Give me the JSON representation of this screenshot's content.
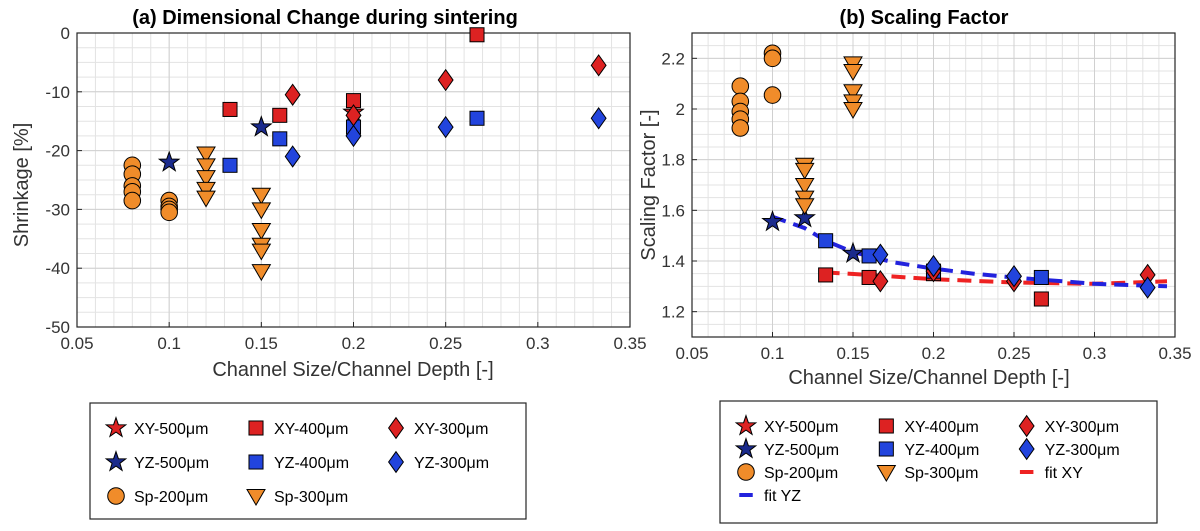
{
  "chart_data": [
    {
      "type": "scatter",
      "title": "(a) Dimensional Change during sintering",
      "xlabel": "Channel Size/Channel Depth [-]",
      "ylabel": "Shrinkage [%]",
      "xlim": [
        0.05,
        0.35
      ],
      "ylim": [
        -50,
        0
      ],
      "xticks": [
        0.05,
        0.1,
        0.15,
        0.2,
        0.25,
        0.3,
        0.35
      ],
      "yticks": [
        -50,
        -40,
        -30,
        -20,
        -10,
        0
      ],
      "xticklabels": [
        "0.05",
        "0.1",
        "0.15",
        "0.2",
        "0.25",
        "0.3",
        "0.35"
      ],
      "yticklabels": [
        "-50",
        "-40",
        "-30",
        "-20",
        "-10",
        "0"
      ],
      "grid": "minor",
      "series": [
        {
          "name": "XY-500µm",
          "marker": "star",
          "color": "#dd2222",
          "points": [
            [
              0.2,
              -13.5
            ]
          ]
        },
        {
          "name": "YZ-500µm",
          "marker": "star",
          "color": "#1a2a8c",
          "points": [
            [
              0.1,
              -22
            ],
            [
              0.15,
              -16
            ]
          ]
        },
        {
          "name": "XY-400µm",
          "marker": "square",
          "color": "#dd2222",
          "points": [
            [
              0.133,
              -13
            ],
            [
              0.16,
              -14
            ],
            [
              0.2,
              -11.5
            ],
            [
              0.267,
              -0.3
            ]
          ]
        },
        {
          "name": "YZ-400µm",
          "marker": "square",
          "color": "#2244dd",
          "points": [
            [
              0.133,
              -22.5
            ],
            [
              0.16,
              -18
            ],
            [
              0.2,
              -16
            ],
            [
              0.267,
              -14.5
            ]
          ]
        },
        {
          "name": "XY-300µm",
          "marker": "diamond",
          "color": "#dd2222",
          "points": [
            [
              0.167,
              -10.5
            ],
            [
              0.2,
              -14
            ],
            [
              0.25,
              -8
            ],
            [
              0.333,
              -5.5
            ]
          ]
        },
        {
          "name": "YZ-300µm",
          "marker": "diamond",
          "color": "#2244dd",
          "points": [
            [
              0.167,
              -21
            ],
            [
              0.2,
              -17.5
            ],
            [
              0.25,
              -16
            ],
            [
              0.333,
              -14.5
            ]
          ]
        },
        {
          "name": "Sp-200µm",
          "marker": "circle",
          "color": "#f08c2a",
          "points": [
            [
              0.08,
              -22.5
            ],
            [
              0.08,
              -24
            ],
            [
              0.08,
              -26
            ],
            [
              0.08,
              -27
            ],
            [
              0.08,
              -28.5
            ],
            [
              0.1,
              -28.5
            ],
            [
              0.1,
              -29.5
            ],
            [
              0.1,
              -30
            ],
            [
              0.1,
              -30.5
            ]
          ]
        },
        {
          "name": "Sp-300µm",
          "marker": "triangle-down",
          "color": "#f08c2a",
          "points": [
            [
              0.12,
              -20.5
            ],
            [
              0.12,
              -22.5
            ],
            [
              0.12,
              -24.5
            ],
            [
              0.12,
              -26.5
            ],
            [
              0.12,
              -28
            ],
            [
              0.15,
              -27.5
            ],
            [
              0.15,
              -30
            ],
            [
              0.15,
              -33.5
            ],
            [
              0.15,
              -36
            ],
            [
              0.15,
              -37
            ],
            [
              0.15,
              -40.5
            ]
          ]
        }
      ]
    },
    {
      "type": "scatter",
      "title": "(b) Scaling Factor",
      "xlabel": "Channel Size/Channel Depth [-]",
      "ylabel": "Scaling Factor [-]",
      "xlim": [
        0.05,
        0.35
      ],
      "ylim": [
        1.1,
        2.3
      ],
      "xticks": [
        0.05,
        0.1,
        0.15,
        0.2,
        0.25,
        0.3,
        0.35
      ],
      "yticks": [
        1.2,
        1.4,
        1.6,
        1.8,
        2.0,
        2.2
      ],
      "xticklabels": [
        "0.05",
        "0.1",
        "0.15",
        "0.2",
        "0.25",
        "0.3",
        "0.35"
      ],
      "yticklabels": [
        "1.2",
        "1.4",
        "1.6",
        "1.8",
        "2",
        "2.2"
      ],
      "grid": "minor",
      "series": [
        {
          "name": "YZ-500µm",
          "marker": "star",
          "color": "#1a2a8c",
          "points": [
            [
              0.1,
              1.555
            ],
            [
              0.12,
              1.57
            ],
            [
              0.15,
              1.43
            ]
          ]
        },
        {
          "name": "XY-400µm",
          "marker": "square",
          "color": "#dd2222",
          "points": [
            [
              0.133,
              1.345
            ],
            [
              0.16,
              1.335
            ],
            [
              0.2,
              1.35
            ],
            [
              0.267,
              1.25
            ]
          ]
        },
        {
          "name": "YZ-400µm",
          "marker": "square",
          "color": "#2244dd",
          "points": [
            [
              0.133,
              1.48
            ],
            [
              0.16,
              1.42
            ],
            [
              0.2,
              1.36
            ],
            [
              0.267,
              1.335
            ]
          ]
        },
        {
          "name": "XY-300µm",
          "marker": "diamond",
          "color": "#dd2222",
          "points": [
            [
              0.167,
              1.32
            ],
            [
              0.2,
              1.36
            ],
            [
              0.25,
              1.32
            ],
            [
              0.333,
              1.345
            ]
          ]
        },
        {
          "name": "YZ-300µm",
          "marker": "diamond",
          "color": "#2244dd",
          "points": [
            [
              0.167,
              1.425
            ],
            [
              0.2,
              1.38
            ],
            [
              0.25,
              1.34
            ],
            [
              0.333,
              1.295
            ]
          ]
        },
        {
          "name": "Sp-200µm",
          "marker": "circle",
          "color": "#f08c2a",
          "points": [
            [
              0.08,
              2.09
            ],
            [
              0.08,
              2.03
            ],
            [
              0.08,
              1.99
            ],
            [
              0.08,
              1.96
            ],
            [
              0.08,
              1.925
            ],
            [
              0.1,
              2.22
            ],
            [
              0.1,
              2.2
            ],
            [
              0.1,
              2.055
            ]
          ]
        },
        {
          "name": "Sp-300µm",
          "marker": "triangle-down",
          "color": "#f08c2a",
          "points": [
            [
              0.12,
              1.78
            ],
            [
              0.12,
              1.76
            ],
            [
              0.12,
              1.7
            ],
            [
              0.12,
              1.65
            ],
            [
              0.12,
              1.62
            ],
            [
              0.15,
              2.18
            ],
            [
              0.15,
              2.15
            ],
            [
              0.15,
              2.07
            ],
            [
              0.15,
              2.03
            ],
            [
              0.15,
              2.0
            ]
          ]
        }
      ],
      "fits": [
        {
          "name": "fit XY",
          "color": "#ee2222",
          "points": [
            [
              0.133,
              1.355
            ],
            [
              0.16,
              1.345
            ],
            [
              0.2,
              1.328
            ],
            [
              0.25,
              1.315
            ],
            [
              0.3,
              1.31
            ],
            [
              0.345,
              1.32
            ]
          ]
        },
        {
          "name": "fit YZ",
          "color": "#2222dd",
          "points": [
            [
              0.1,
              1.575
            ],
            [
              0.12,
              1.53
            ],
            [
              0.133,
              1.48
            ],
            [
              0.15,
              1.435
            ],
            [
              0.175,
              1.395
            ],
            [
              0.2,
              1.37
            ],
            [
              0.225,
              1.35
            ],
            [
              0.25,
              1.335
            ],
            [
              0.3,
              1.31
            ],
            [
              0.345,
              1.3
            ]
          ]
        }
      ]
    }
  ],
  "legend_a": {
    "items": [
      {
        "label": "XY-500μm",
        "marker": "star",
        "color": "#dd2222"
      },
      {
        "label": "XY-400μm",
        "marker": "square",
        "color": "#dd2222"
      },
      {
        "label": "XY-300μm",
        "marker": "diamond",
        "color": "#dd2222"
      },
      {
        "label": "YZ-500μm",
        "marker": "star",
        "color": "#1a2a8c"
      },
      {
        "label": "YZ-400μm",
        "marker": "square",
        "color": "#2244dd"
      },
      {
        "label": "YZ-300μm",
        "marker": "diamond",
        "color": "#2244dd"
      },
      {
        "label": "Sp-200μm",
        "marker": "circle",
        "color": "#f08c2a"
      },
      {
        "label": "Sp-300μm",
        "marker": "triangle-down",
        "color": "#f08c2a"
      }
    ]
  },
  "legend_b": {
    "items": [
      {
        "label": "XY-500μm",
        "marker": "star",
        "color": "#dd2222"
      },
      {
        "label": "XY-400μm",
        "marker": "square",
        "color": "#dd2222"
      },
      {
        "label": "XY-300μm",
        "marker": "diamond",
        "color": "#dd2222"
      },
      {
        "label": "YZ-500μm",
        "marker": "star",
        "color": "#1a2a8c"
      },
      {
        "label": "YZ-400μm",
        "marker": "square",
        "color": "#2244dd"
      },
      {
        "label": "YZ-300μm",
        "marker": "diamond",
        "color": "#2244dd"
      },
      {
        "label": "Sp-200μm",
        "marker": "circle",
        "color": "#f08c2a"
      },
      {
        "label": "Sp-300μm",
        "marker": "triangle-down",
        "color": "#f08c2a"
      },
      {
        "label": "fit XY",
        "marker": "dash",
        "color": "#ee2222"
      },
      {
        "label": "fit YZ",
        "marker": "dash",
        "color": "#2222dd"
      }
    ]
  }
}
